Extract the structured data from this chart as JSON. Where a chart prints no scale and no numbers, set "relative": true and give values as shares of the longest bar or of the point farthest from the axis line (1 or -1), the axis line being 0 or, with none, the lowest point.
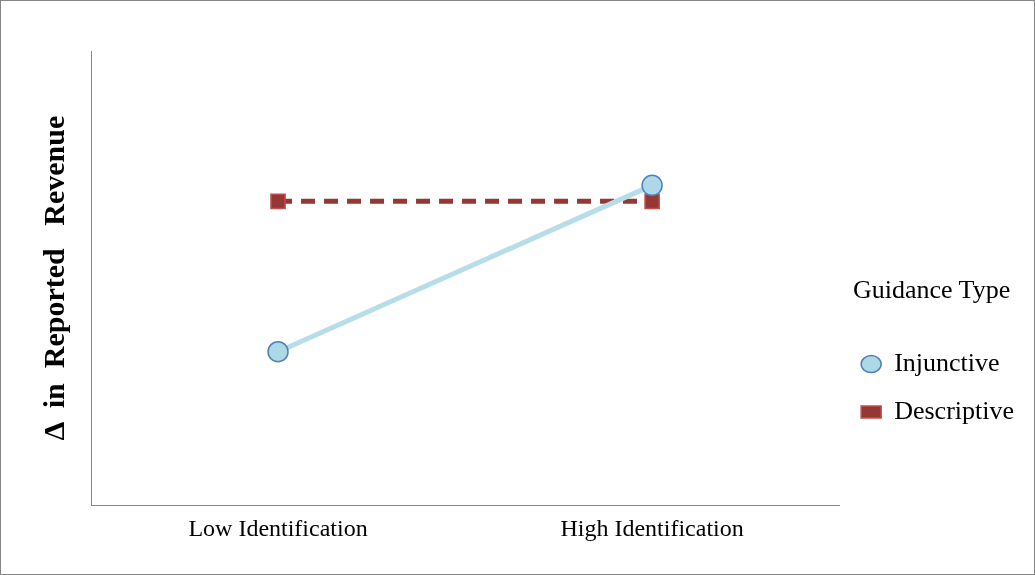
{
  "chart_data": {
    "type": "line",
    "ylabel": "Δ  in  Reported   Revenue",
    "legend_title": "Guidance Type",
    "categories": [
      "Low Identification",
      "High Identification"
    ],
    "relative": true,
    "legend": "right",
    "series": [
      {
        "name": "Injunctive",
        "color": "#b7dde8",
        "values": [
          0.48,
          1
        ],
        "marker": "circle",
        "line_style": "solid"
      },
      {
        "name": "Descriptive",
        "color": "#953735",
        "values": [
          0.95,
          0.95
        ],
        "marker": "square",
        "line_style": "dashed"
      }
    ]
  }
}
